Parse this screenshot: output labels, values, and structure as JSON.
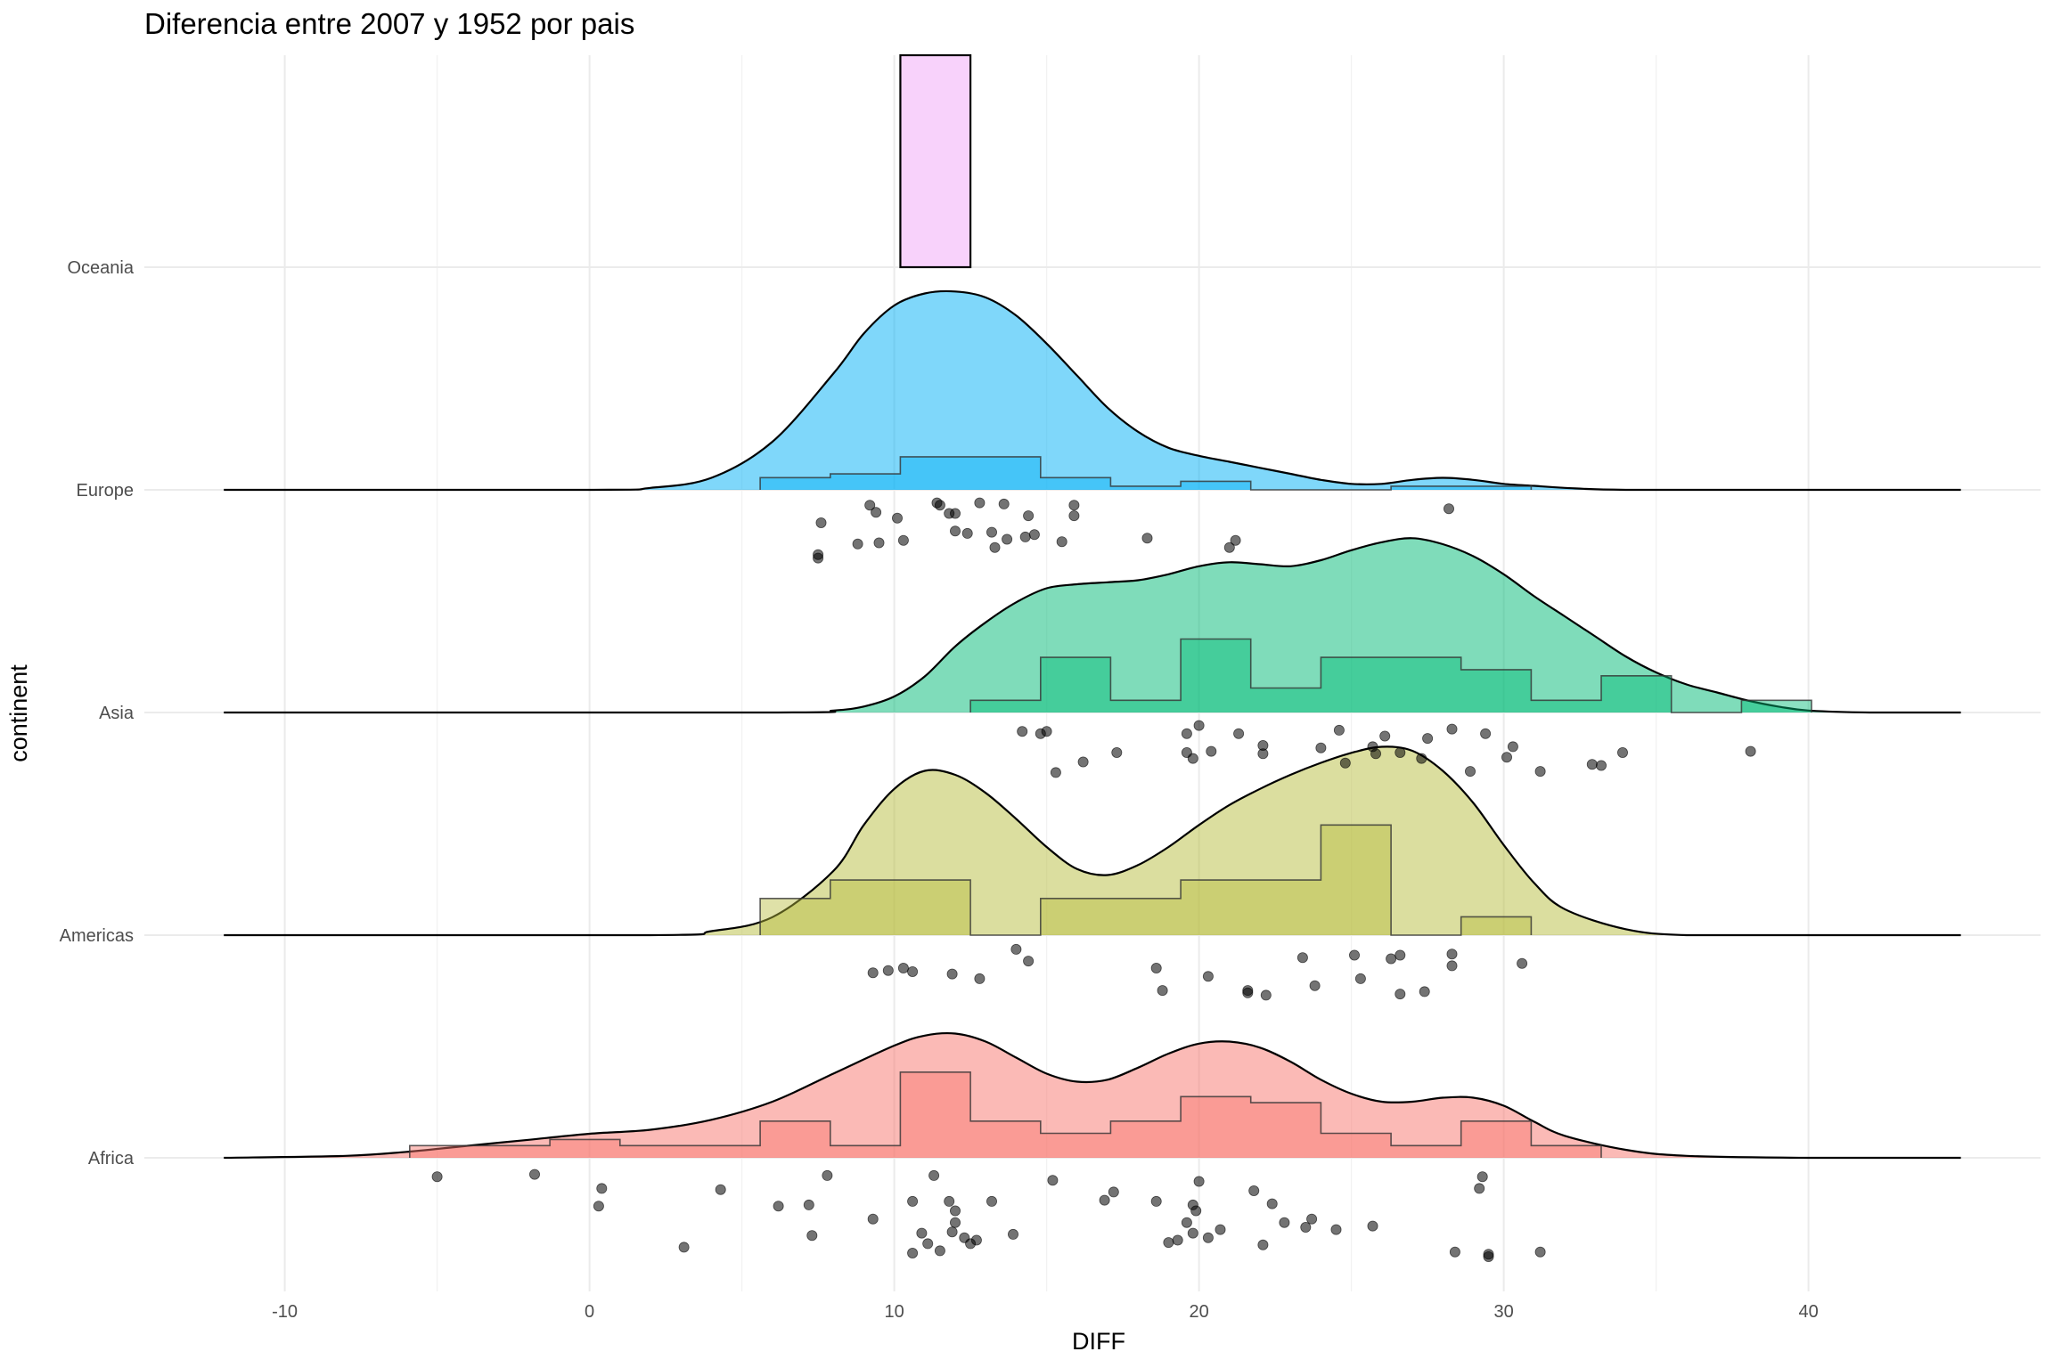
{
  "chart_data": {
    "type": "raincloud",
    "title": "Diferencia entre 2007 y 1952 por pais",
    "xlabel": "DIFF",
    "ylabel": "continent",
    "xlim": [
      -15,
      48
    ],
    "x_ticks": [
      -10,
      0,
      10,
      20,
      30,
      40
    ],
    "x_tick_labels": [
      "-10",
      "0",
      "10",
      "20",
      "30",
      "40"
    ],
    "grid": true,
    "categories": [
      "Africa",
      "Americas",
      "Asia",
      "Europe",
      "Oceania"
    ],
    "bin_edges": [
      -5.9,
      -3.6,
      -1.3,
      1.0,
      3.3,
      5.6,
      7.9,
      10.2,
      12.5,
      14.8,
      17.1,
      19.4,
      21.7,
      24.0,
      26.3,
      28.6,
      30.9,
      33.2,
      35.5,
      37.8,
      40.1
    ],
    "series": [
      {
        "name": "Africa",
        "color": "#F8766D",
        "density_x": [
          -12,
          -8,
          -6,
          -4,
          -2,
          0,
          2,
          4,
          6,
          8,
          10,
          11,
          12,
          13,
          14,
          15,
          16,
          17,
          18,
          19,
          20,
          21,
          22,
          23,
          24,
          25,
          26,
          27,
          28,
          29,
          30,
          31,
          32,
          34,
          36,
          40,
          45
        ],
        "density_y": [
          0.0,
          0.01,
          0.03,
          0.06,
          0.09,
          0.12,
          0.14,
          0.19,
          0.28,
          0.42,
          0.56,
          0.61,
          0.62,
          0.58,
          0.5,
          0.42,
          0.38,
          0.39,
          0.45,
          0.52,
          0.57,
          0.58,
          0.55,
          0.48,
          0.39,
          0.32,
          0.28,
          0.28,
          0.3,
          0.3,
          0.26,
          0.18,
          0.11,
          0.04,
          0.01,
          0.0,
          0.0
        ],
        "hist": [
          0.1,
          0.1,
          0.15,
          0.1,
          0.1,
          0.3,
          0.1,
          0.7,
          0.3,
          0.2,
          0.3,
          0.5,
          0.45,
          0.2,
          0.1,
          0.3,
          0.1,
          0,
          0,
          0
        ],
        "points": [
          [
            -5.0,
            0.1
          ],
          [
            -1.8,
            0.08
          ],
          [
            0.4,
            0.2
          ],
          [
            0.3,
            0.35
          ],
          [
            3.1,
            0.7
          ],
          [
            4.3,
            0.21
          ],
          [
            6.2,
            0.35
          ],
          [
            7.2,
            0.34
          ],
          [
            7.3,
            0.6
          ],
          [
            7.8,
            0.09
          ],
          [
            9.3,
            0.46
          ],
          [
            10.6,
            0.31
          ],
          [
            10.9,
            0.58
          ],
          [
            10.6,
            0.75
          ],
          [
            11.1,
            0.67
          ],
          [
            11.3,
            0.09
          ],
          [
            11.5,
            0.73
          ],
          [
            11.8,
            0.31
          ],
          [
            12.0,
            0.39
          ],
          [
            12.0,
            0.49
          ],
          [
            11.9,
            0.57
          ],
          [
            12.3,
            0.62
          ],
          [
            12.5,
            0.67
          ],
          [
            12.7,
            0.64
          ],
          [
            13.2,
            0.31
          ],
          [
            13.9,
            0.59
          ],
          [
            15.2,
            0.13
          ],
          [
            16.9,
            0.3
          ],
          [
            17.2,
            0.23
          ],
          [
            18.6,
            0.31
          ],
          [
            19.0,
            0.66
          ],
          [
            19.3,
            0.64
          ],
          [
            19.6,
            0.49
          ],
          [
            19.8,
            0.34
          ],
          [
            19.9,
            0.39
          ],
          [
            20.0,
            0.14
          ],
          [
            19.8,
            0.58
          ],
          [
            20.3,
            0.62
          ],
          [
            20.7,
            0.55
          ],
          [
            21.8,
            0.22
          ],
          [
            22.1,
            0.68
          ],
          [
            22.4,
            0.33
          ],
          [
            22.8,
            0.49
          ],
          [
            23.5,
            0.53
          ],
          [
            23.7,
            0.46
          ],
          [
            24.5,
            0.55
          ],
          [
            25.7,
            0.52
          ],
          [
            28.4,
            0.74
          ],
          [
            29.2,
            0.2
          ],
          [
            29.3,
            0.1
          ],
          [
            29.5,
            0.78
          ],
          [
            29.5,
            0.76
          ],
          [
            31.2,
            0.74
          ]
        ]
      },
      {
        "name": "Americas",
        "color": "#B8BD3F",
        "density_x": [
          -12,
          2,
          4,
          6,
          8,
          9,
          10,
          11,
          12,
          13,
          14,
          15,
          16,
          17,
          18,
          19,
          20,
          21,
          22,
          23,
          24,
          25,
          26,
          27,
          28,
          29,
          30,
          31,
          32,
          34,
          36,
          40,
          45
        ],
        "density_y": [
          0.0,
          0.0,
          0.02,
          0.09,
          0.32,
          0.55,
          0.73,
          0.82,
          0.8,
          0.71,
          0.58,
          0.44,
          0.33,
          0.3,
          0.35,
          0.44,
          0.55,
          0.65,
          0.73,
          0.8,
          0.86,
          0.91,
          0.94,
          0.92,
          0.82,
          0.66,
          0.45,
          0.26,
          0.13,
          0.03,
          0.0,
          0.0,
          0.0
        ],
        "hist": [
          0,
          0,
          0,
          0,
          0,
          0.3,
          0.45,
          0.45,
          0,
          0.3,
          0.3,
          0.45,
          0.45,
          0.9,
          0,
          0.15,
          0,
          0,
          0,
          0
        ],
        "points": [
          [
            9.3,
            0.26
          ],
          [
            9.8,
            0.24
          ],
          [
            10.3,
            0.22
          ],
          [
            10.6,
            0.25
          ],
          [
            11.9,
            0.27
          ],
          [
            12.8,
            0.31
          ],
          [
            14.0,
            0.06
          ],
          [
            14.4,
            0.16
          ],
          [
            18.6,
            0.22
          ],
          [
            18.8,
            0.41
          ],
          [
            20.3,
            0.29
          ],
          [
            21.6,
            0.41
          ],
          [
            21.6,
            0.43
          ],
          [
            22.2,
            0.45
          ],
          [
            23.4,
            0.13
          ],
          [
            23.8,
            0.37
          ],
          [
            25.1,
            0.11
          ],
          [
            25.3,
            0.31
          ],
          [
            26.3,
            0.14
          ],
          [
            26.6,
            0.11
          ],
          [
            26.6,
            0.44
          ],
          [
            27.4,
            0.42
          ],
          [
            28.3,
            0.1
          ],
          [
            28.3,
            0.2
          ],
          [
            30.6,
            0.18
          ]
        ]
      },
      {
        "name": "Asia",
        "color": "#00BA75",
        "density_x": [
          -12,
          6,
          8,
          9,
          10,
          11,
          12,
          13,
          14,
          15,
          16,
          17,
          18,
          19,
          20,
          21,
          22,
          23,
          24,
          25,
          26,
          27,
          28,
          29,
          30,
          31,
          32,
          33,
          34,
          35,
          36,
          37,
          38,
          39,
          40,
          42,
          45
        ],
        "density_y": [
          0.0,
          0.0,
          0.01,
          0.03,
          0.08,
          0.18,
          0.33,
          0.45,
          0.55,
          0.62,
          0.64,
          0.65,
          0.66,
          0.69,
          0.73,
          0.75,
          0.74,
          0.73,
          0.76,
          0.81,
          0.85,
          0.87,
          0.84,
          0.78,
          0.69,
          0.58,
          0.48,
          0.38,
          0.28,
          0.2,
          0.14,
          0.1,
          0.06,
          0.03,
          0.01,
          0.0,
          0.0
        ],
        "hist": [
          0,
          0,
          0,
          0,
          0,
          0,
          0,
          0,
          0.1,
          0.45,
          0.1,
          0.6,
          0.2,
          0.45,
          0.45,
          0.35,
          0.1,
          0.3,
          0,
          0.1
        ],
        "points": [
          [
            14.2,
            0.1
          ],
          [
            14.8,
            0.12
          ],
          [
            15.0,
            0.1
          ],
          [
            16.2,
            0.36
          ],
          [
            15.3,
            0.45
          ],
          [
            17.3,
            0.28
          ],
          [
            19.6,
            0.12
          ],
          [
            19.8,
            0.33
          ],
          [
            19.6,
            0.28
          ],
          [
            20.0,
            0.05
          ],
          [
            20.4,
            0.27
          ],
          [
            21.3,
            0.12
          ],
          [
            22.1,
            0.22
          ],
          [
            22.1,
            0.29
          ],
          [
            24.0,
            0.24
          ],
          [
            24.6,
            0.09
          ],
          [
            24.8,
            0.37
          ],
          [
            25.7,
            0.23
          ],
          [
            25.8,
            0.29
          ],
          [
            26.1,
            0.14
          ],
          [
            26.6,
            0.28
          ],
          [
            27.3,
            0.33
          ],
          [
            27.5,
            0.16
          ],
          [
            28.3,
            0.08
          ],
          [
            28.9,
            0.44
          ],
          [
            29.4,
            0.12
          ],
          [
            30.1,
            0.32
          ],
          [
            30.3,
            0.23
          ],
          [
            31.2,
            0.44
          ],
          [
            32.9,
            0.38
          ],
          [
            33.2,
            0.39
          ],
          [
            33.9,
            0.28
          ],
          [
            38.1,
            0.27
          ]
        ]
      },
      {
        "name": "Europe",
        "color": "#00B0F6",
        "density_x": [
          -12,
          0,
          2,
          4,
          6,
          8,
          9,
          10,
          11,
          12,
          13,
          14,
          15,
          16,
          17,
          18,
          19,
          20,
          21,
          22,
          23,
          24,
          25,
          26,
          27,
          28,
          29,
          30,
          31,
          32,
          34,
          40,
          45
        ],
        "density_y": [
          0.0,
          0.0,
          0.01,
          0.06,
          0.24,
          0.58,
          0.78,
          0.92,
          0.98,
          0.99,
          0.96,
          0.87,
          0.73,
          0.57,
          0.41,
          0.29,
          0.21,
          0.17,
          0.14,
          0.11,
          0.08,
          0.05,
          0.03,
          0.03,
          0.05,
          0.06,
          0.05,
          0.03,
          0.02,
          0.01,
          0.0,
          0.0,
          0.0
        ],
        "hist": [
          0,
          0,
          0,
          0,
          0,
          0.1,
          0.13,
          0.27,
          0.27,
          0.1,
          0.03,
          0.07,
          0,
          0,
          0.03,
          0.03,
          0,
          0,
          0,
          0
        ],
        "points": [
          [
            7.6,
            0.22
          ],
          [
            7.5,
            0.49
          ],
          [
            7.5,
            0.52
          ],
          [
            8.8,
            0.4
          ],
          [
            9.2,
            0.07
          ],
          [
            9.4,
            0.13
          ],
          [
            9.5,
            0.39
          ],
          [
            10.3,
            0.37
          ],
          [
            10.1,
            0.18
          ],
          [
            11.4,
            0.05
          ],
          [
            11.5,
            0.07
          ],
          [
            11.8,
            0.14
          ],
          [
            12.0,
            0.14
          ],
          [
            12.0,
            0.29
          ],
          [
            12.4,
            0.31
          ],
          [
            12.8,
            0.05
          ],
          [
            13.2,
            0.3
          ],
          [
            13.6,
            0.06
          ],
          [
            13.3,
            0.43
          ],
          [
            13.7,
            0.36
          ],
          [
            14.3,
            0.34
          ],
          [
            14.4,
            0.16
          ],
          [
            14.6,
            0.32
          ],
          [
            15.5,
            0.38
          ],
          [
            15.9,
            0.07
          ],
          [
            15.9,
            0.16
          ],
          [
            18.3,
            0.35
          ],
          [
            21.0,
            0.43
          ],
          [
            21.2,
            0.37
          ],
          [
            28.2,
            0.1
          ]
        ]
      },
      {
        "name": "Oceania",
        "color": "#E76BF3",
        "density_x": [],
        "density_y": [],
        "hist": [],
        "bar_range": [
          10.2,
          12.5
        ],
        "points": []
      }
    ]
  }
}
